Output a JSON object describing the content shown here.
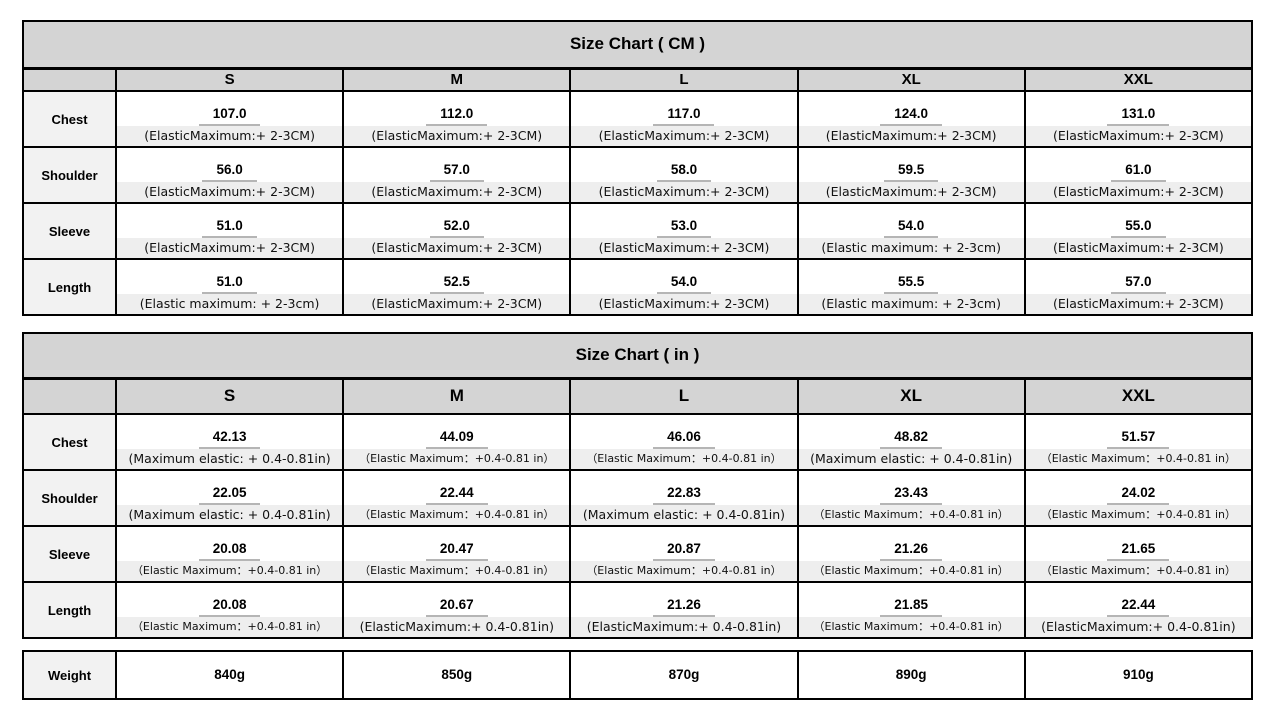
{
  "colors": {
    "header_bg": "#d4d4d4",
    "row_label_bg": "#f2f2f2",
    "note_strip_bg": "#eeeeee",
    "border": "#000000",
    "value_underline": "#b5b5b5",
    "page_bg": "#ffffff"
  },
  "sizes": [
    "S",
    "M",
    "L",
    "XL",
    "XXL"
  ],
  "chart_data": [
    {
      "type": "table",
      "title": "Size Chart ( CM )",
      "columns": [
        "",
        "S",
        "M",
        "L",
        "XL",
        "XXL"
      ],
      "has_header": true,
      "rows": [
        {
          "label": "Chest",
          "values": [
            "107.0",
            "112.0",
            "117.0",
            "124.0",
            "131.0"
          ],
          "notes": [
            "(ElasticMaximum:+ 2-3CM)",
            "(ElasticMaximum:+ 2-3CM)",
            "(ElasticMaximum:+ 2-3CM)",
            "(ElasticMaximum:+ 2-3CM)",
            "(ElasticMaximum:+ 2-3CM)"
          ]
        },
        {
          "label": "Shoulder",
          "values": [
            "56.0",
            "57.0",
            "58.0",
            "59.5",
            "61.0"
          ],
          "notes": [
            "(ElasticMaximum:+ 2-3CM)",
            "(ElasticMaximum:+ 2-3CM)",
            "(ElasticMaximum:+ 2-3CM)",
            "(ElasticMaximum:+ 2-3CM)",
            "(ElasticMaximum:+ 2-3CM)"
          ]
        },
        {
          "label": "Sleeve",
          "values": [
            "51.0",
            "52.0",
            "53.0",
            "54.0",
            "55.0"
          ],
          "notes": [
            "(ElasticMaximum:+ 2-3CM)",
            "(ElasticMaximum:+ 2-3CM)",
            "(ElasticMaximum:+ 2-3CM)",
            "(Elastic maximum: + 2-3cm)",
            "(ElasticMaximum:+ 2-3CM)"
          ]
        },
        {
          "label": "Length",
          "values": [
            "51.0",
            "52.5",
            "54.0",
            "55.5",
            "57.0"
          ],
          "notes": [
            "(Elastic maximum: + 2-3cm)",
            "(ElasticMaximum:+ 2-3CM)",
            "(ElasticMaximum:+ 2-3CM)",
            "(Elastic maximum: + 2-3cm)",
            "(ElasticMaximum:+ 2-3CM)"
          ]
        }
      ]
    },
    {
      "type": "table",
      "title": "Size Chart ( in )",
      "columns": [
        "",
        "S",
        "M",
        "L",
        "XL",
        "XXL"
      ],
      "has_header": true,
      "rows": [
        {
          "label": "Chest",
          "values": [
            "42.13",
            "44.09",
            "46.06",
            "48.82",
            "51.57"
          ],
          "notes": [
            "(Maximum elastic: + 0.4-0.81in)",
            "（Elastic Maximum：+0.4-0.81 in）",
            "（Elastic Maximum：+0.4-0.81 in）",
            "(Maximum elastic: + 0.4-0.81in)",
            "（Elastic Maximum：+0.4-0.81 in）"
          ]
        },
        {
          "label": "Shoulder",
          "values": [
            "22.05",
            "22.44",
            "22.83",
            "23.43",
            "24.02"
          ],
          "notes": [
            "(Maximum elastic: + 0.4-0.81in)",
            "（Elastic Maximum：+0.4-0.81 in）",
            "(Maximum elastic: + 0.4-0.81in)",
            "（Elastic Maximum：+0.4-0.81 in）",
            "（Elastic Maximum：+0.4-0.81 in）"
          ]
        },
        {
          "label": "Sleeve",
          "values": [
            "20.08",
            "20.47",
            "20.87",
            "21.26",
            "21.65"
          ],
          "notes": [
            "（Elastic Maximum：+0.4-0.81 in）",
            "（Elastic Maximum：+0.4-0.81 in）",
            "（Elastic Maximum：+0.4-0.81 in）",
            "（Elastic Maximum：+0.4-0.81 in）",
            "（Elastic Maximum：+0.4-0.81 in）"
          ]
        },
        {
          "label": "Length",
          "values": [
            "20.08",
            "20.67",
            "21.26",
            "21.85",
            "22.44"
          ],
          "notes": [
            "（Elastic Maximum：+0.4-0.81 in）",
            "(ElasticMaximum:+ 0.4-0.81in)",
            "(ElasticMaximum:+ 0.4-0.81in)",
            "（Elastic Maximum：+0.4-0.81 in）",
            "(ElasticMaximum:+ 0.4-0.81in)"
          ]
        }
      ]
    },
    {
      "type": "table",
      "title": "",
      "columns": [
        "",
        "S",
        "M",
        "L",
        "XL",
        "XXL"
      ],
      "has_header": false,
      "plain": true,
      "rows": [
        {
          "label": "Weight",
          "values": [
            "840g",
            "850g",
            "870g",
            "890g",
            "910g"
          ]
        }
      ]
    }
  ]
}
